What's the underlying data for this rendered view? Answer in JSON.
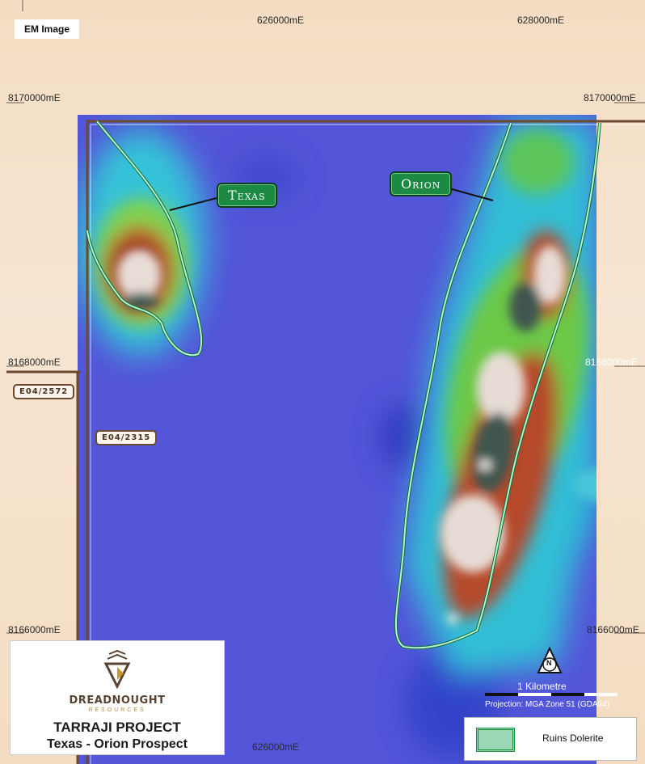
{
  "map": {
    "image_type_label": "EM Image",
    "grid_labels": {
      "top_left_easting": "626000mE",
      "top_right_easting": "628000mE",
      "bottom_easting": "626000mE",
      "north_8170000_left": "8170000mE",
      "north_8170000_right": "8170000mE",
      "north_8168000_left": "8168000mE",
      "north_8168000_right": "8168000mE",
      "north_8166000_left": "8166000mE",
      "north_8166000_right": "8166000mE"
    },
    "tenements": [
      "E04/2572",
      "E04/2315"
    ],
    "callouts": {
      "texas": "Texas",
      "orion": "Orion"
    },
    "scale_label": "1 Kilometre",
    "projection": "Projection: MGA Zone 51 (GDA94)",
    "north_arrow_letter": "N",
    "legend": {
      "label": "Ruins Dolerite",
      "swatch_color": "#9ad7b4"
    },
    "title_block": {
      "company": "DREADNOUGHT",
      "company_sub": "RESOURCES",
      "project": "TARRAJI PROJECT",
      "prospect": "Texas - Orion Prospect"
    },
    "colors": {
      "background_em": "#4f52d6",
      "tenement_boundary": "#6b4a2f",
      "dolerite_outline": "#9fe8bf",
      "callout_fill": "#1c8a42"
    }
  }
}
